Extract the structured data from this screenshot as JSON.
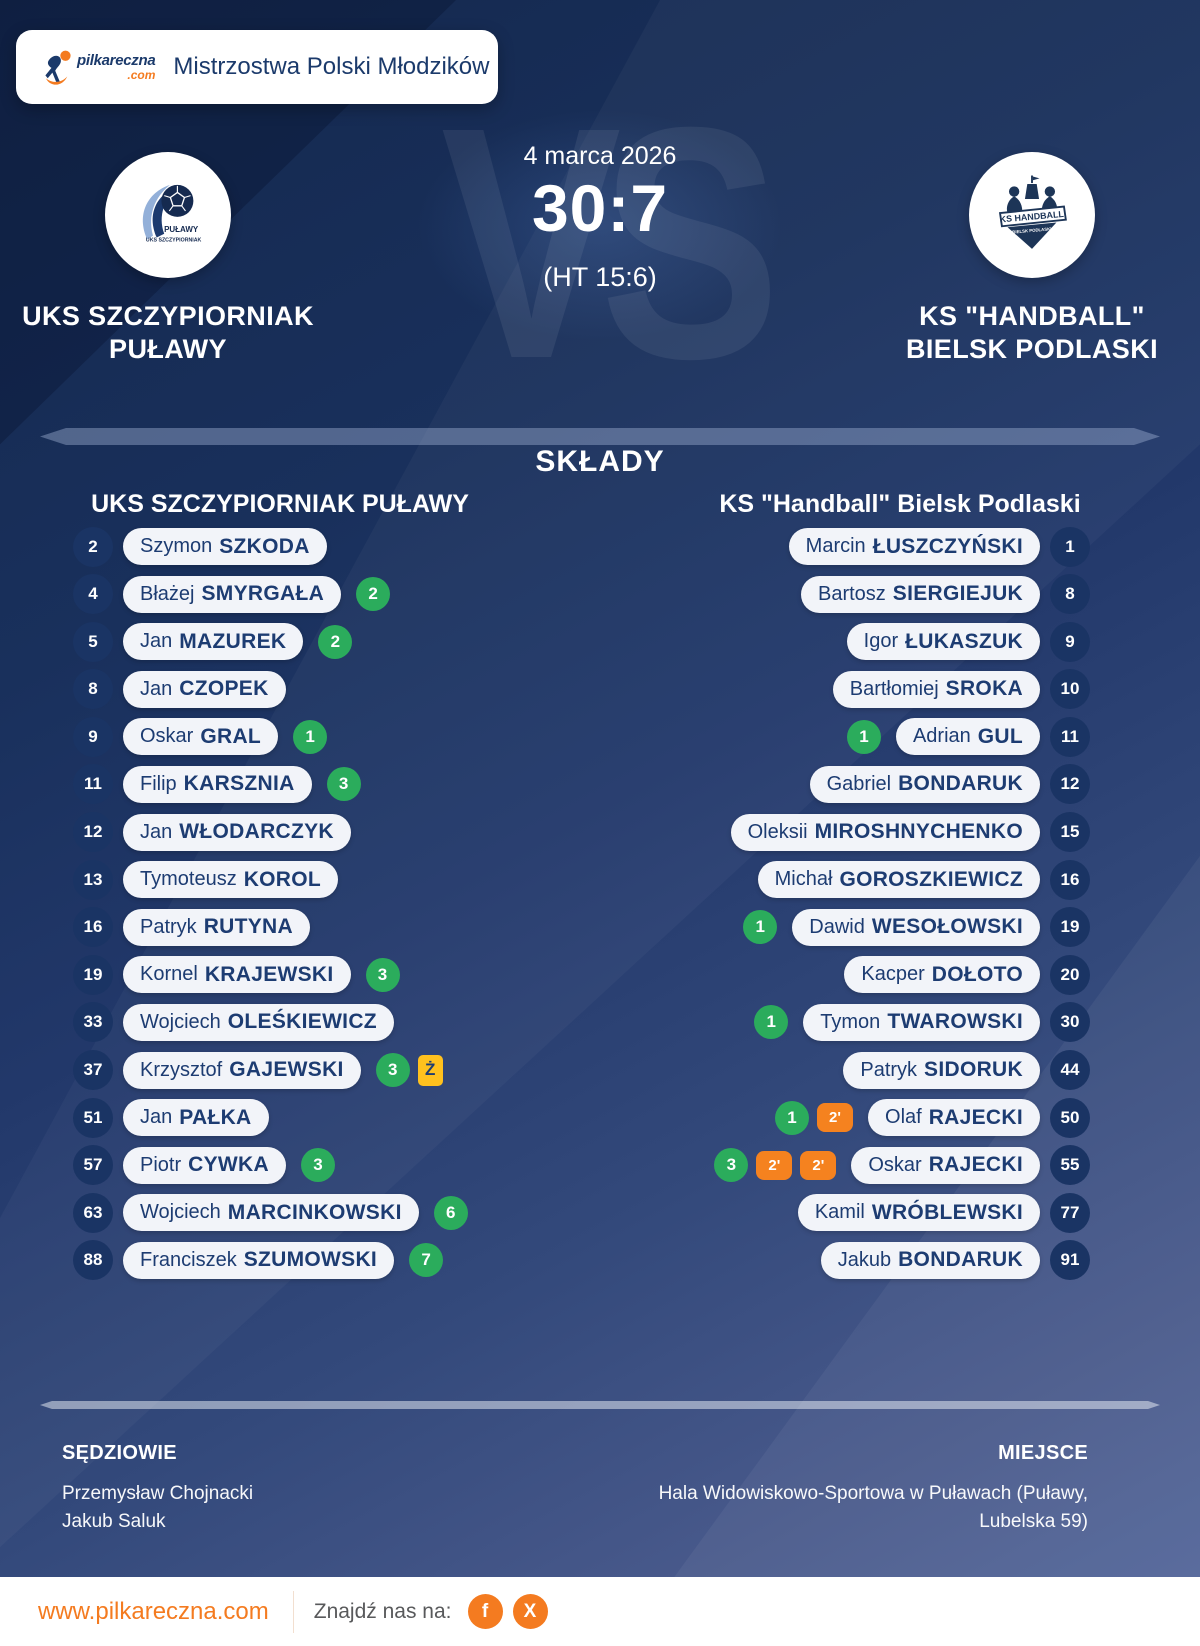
{
  "header": {
    "site_name": "pilkareczna",
    "site_tld": ".com",
    "title": "Mistrzostwa Polski Młodzików"
  },
  "match": {
    "date": "4 marca 2026",
    "score": "30:7",
    "halftime": "(HT 15:6)",
    "vs_watermark": "VS",
    "home_team": {
      "line1": "UKS SZCZYPIORNIAK",
      "line2": "PUŁAWY",
      "logo_title": "PUŁAWY",
      "logo_subtitle": "UKS SZCZYPIORNIAK"
    },
    "away_team": {
      "line1": "KS \"HANDBALL\"",
      "line2": "BIELSK PODLASKI",
      "logo_title": "KS HANDBALL",
      "logo_subtitle": "BIELSK PODLASKI"
    }
  },
  "lineups": {
    "section_title": "SKŁADY",
    "home_header": "UKS SZCZYPIORNIAK PUŁAWY",
    "away_header": "KS \"Handball\" Bielsk Podlaski",
    "badges": {
      "yellow_card": "Ż",
      "two_minutes": "2'"
    },
    "home_players": [
      {
        "number": "2",
        "first": "Szymon",
        "last": "SZKODA"
      },
      {
        "number": "4",
        "first": "Błażej",
        "last": "SMYRGAŁA",
        "goals": "2"
      },
      {
        "number": "5",
        "first": "Jan",
        "last": "MAZUREK",
        "goals": "2"
      },
      {
        "number": "8",
        "first": "Jan",
        "last": "CZOPEK"
      },
      {
        "number": "9",
        "first": "Oskar",
        "last": "GRAL",
        "goals": "1"
      },
      {
        "number": "11",
        "first": "Filip",
        "last": "KARSZNIA",
        "goals": "3"
      },
      {
        "number": "12",
        "first": "Jan",
        "last": "WŁODARCZYK"
      },
      {
        "number": "13",
        "first": "Tymoteusz",
        "last": "KOROL"
      },
      {
        "number": "16",
        "first": "Patryk",
        "last": "RUTYNA"
      },
      {
        "number": "19",
        "first": "Kornel",
        "last": "KRAJEWSKI",
        "goals": "3"
      },
      {
        "number": "33",
        "first": "Wojciech",
        "last": "OLEŚKIEWICZ"
      },
      {
        "number": "37",
        "first": "Krzysztof",
        "last": "GAJEWSKI",
        "goals": "3",
        "yellow": true
      },
      {
        "number": "51",
        "first": "Jan",
        "last": "PAŁKA"
      },
      {
        "number": "57",
        "first": "Piotr",
        "last": "CYWKA",
        "goals": "3"
      },
      {
        "number": "63",
        "first": "Wojciech",
        "last": "MARCINKOWSKI",
        "goals": "6"
      },
      {
        "number": "88",
        "first": "Franciszek",
        "last": "SZUMOWSKI",
        "goals": "7"
      }
    ],
    "away_players": [
      {
        "number": "1",
        "first": "Marcin",
        "last": "ŁUSZCZYŃSKI"
      },
      {
        "number": "8",
        "first": "Bartosz",
        "last": "SIERGIEJUK"
      },
      {
        "number": "9",
        "first": "Igor",
        "last": "ŁUKASZUK"
      },
      {
        "number": "10",
        "first": "Bartłomiej",
        "last": "SROKA"
      },
      {
        "number": "11",
        "first": "Adrian",
        "last": "GUL",
        "goals": "1"
      },
      {
        "number": "12",
        "first": "Gabriel",
        "last": "BONDARUK"
      },
      {
        "number": "15",
        "first": "Oleksii",
        "last": "MIROSHNYCHENKO"
      },
      {
        "number": "16",
        "first": "Michał",
        "last": "GOROSZKIEWICZ"
      },
      {
        "number": "19",
        "first": "Dawid",
        "last": "WESOŁOWSKI",
        "goals": "1"
      },
      {
        "number": "20",
        "first": "Kacper",
        "last": "DOŁOTO"
      },
      {
        "number": "30",
        "first": "Tymon",
        "last": "TWAROWSKI",
        "goals": "1"
      },
      {
        "number": "44",
        "first": "Patryk",
        "last": "SIDORUK"
      },
      {
        "number": "50",
        "first": "Olaf",
        "last": "RAJECKI",
        "goals": "1",
        "two_min": 1
      },
      {
        "number": "55",
        "first": "Oskar",
        "last": "RAJECKI",
        "goals": "3",
        "two_min": 2
      },
      {
        "number": "77",
        "first": "Kamil",
        "last": "WRÓBLEWSKI"
      },
      {
        "number": "91",
        "first": "Jakub",
        "last": "BONDARUK"
      }
    ]
  },
  "footer": {
    "referees_label": "SĘDZIOWIE",
    "referees": [
      "Przemysław Chojnacki",
      "Jakub Saluk"
    ],
    "venue_label": "MIEJSCE",
    "venue": "Hala Widowiskowo-Sportowa w Puławach (Puławy, Lubelska 59)"
  },
  "bottom_bar": {
    "website": "www.pilkareczna.com",
    "find_us_label": "Znajdź nas na:",
    "facebook_icon": "f",
    "x_icon": "X"
  },
  "colors": {
    "background_top": "#15294f",
    "background_bottom": "#53679a",
    "navy_text": "#1b3a6b",
    "orange": "#f47b20",
    "green": "#2bac5c",
    "yellow": "#ffc11e",
    "pill_background": "#f2f4f9",
    "number_circle": "#1a3464"
  }
}
